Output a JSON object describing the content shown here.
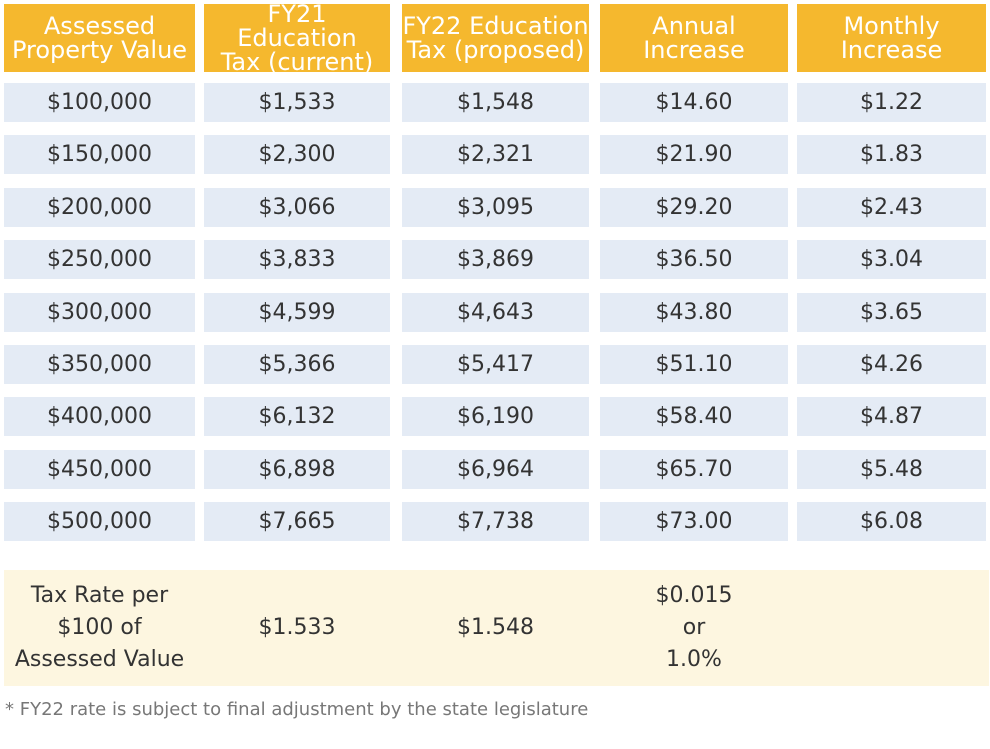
{
  "header": {
    "col0": [
      "Assessed",
      "Property Value"
    ],
    "col1": [
      "FY21 Education",
      "Tax (current)"
    ],
    "col2": [
      "FY22 Education",
      "Tax (proposed)"
    ],
    "col3": [
      "Annual",
      "Increase"
    ],
    "col4": [
      "Monthly",
      "Increase"
    ]
  },
  "rows": [
    [
      "$100,000",
      "$1,533",
      "$1,548",
      "$14.60",
      "$1.22"
    ],
    [
      "$150,000",
      "$2,300",
      "$2,321",
      "$21.90",
      "$1.83"
    ],
    [
      "$200,000",
      "$3,066",
      "$3,095",
      "$29.20",
      "$2.43"
    ],
    [
      "$250,000",
      "$3,833",
      "$3,869",
      "$36.50",
      "$3.04"
    ],
    [
      "$300,000",
      "$4,599",
      "$4,643",
      "$43.80",
      "$3.65"
    ],
    [
      "$350,000",
      "$5,366",
      "$5,417",
      "$51.10",
      "$4.26"
    ],
    [
      "$400,000",
      "$6,132",
      "$6,190",
      "$58.40",
      "$4.87"
    ],
    [
      "$450,000",
      "$6,898",
      "$6,964",
      "$65.70",
      "$5.48"
    ],
    [
      "$500,000",
      "$7,665",
      "$7,738",
      "$73.00",
      "$6.08"
    ]
  ],
  "tax_rate": {
    "label": [
      "Tax Rate per",
      "$100 of",
      "Assessed Value"
    ],
    "current": "$1.533",
    "proposed": "$1.548",
    "increase": [
      "$0.015",
      "or",
      "1.0%"
    ],
    "monthly": ""
  },
  "footnote": "* FY22 rate is subject to final adjustment by the state legislature"
}
